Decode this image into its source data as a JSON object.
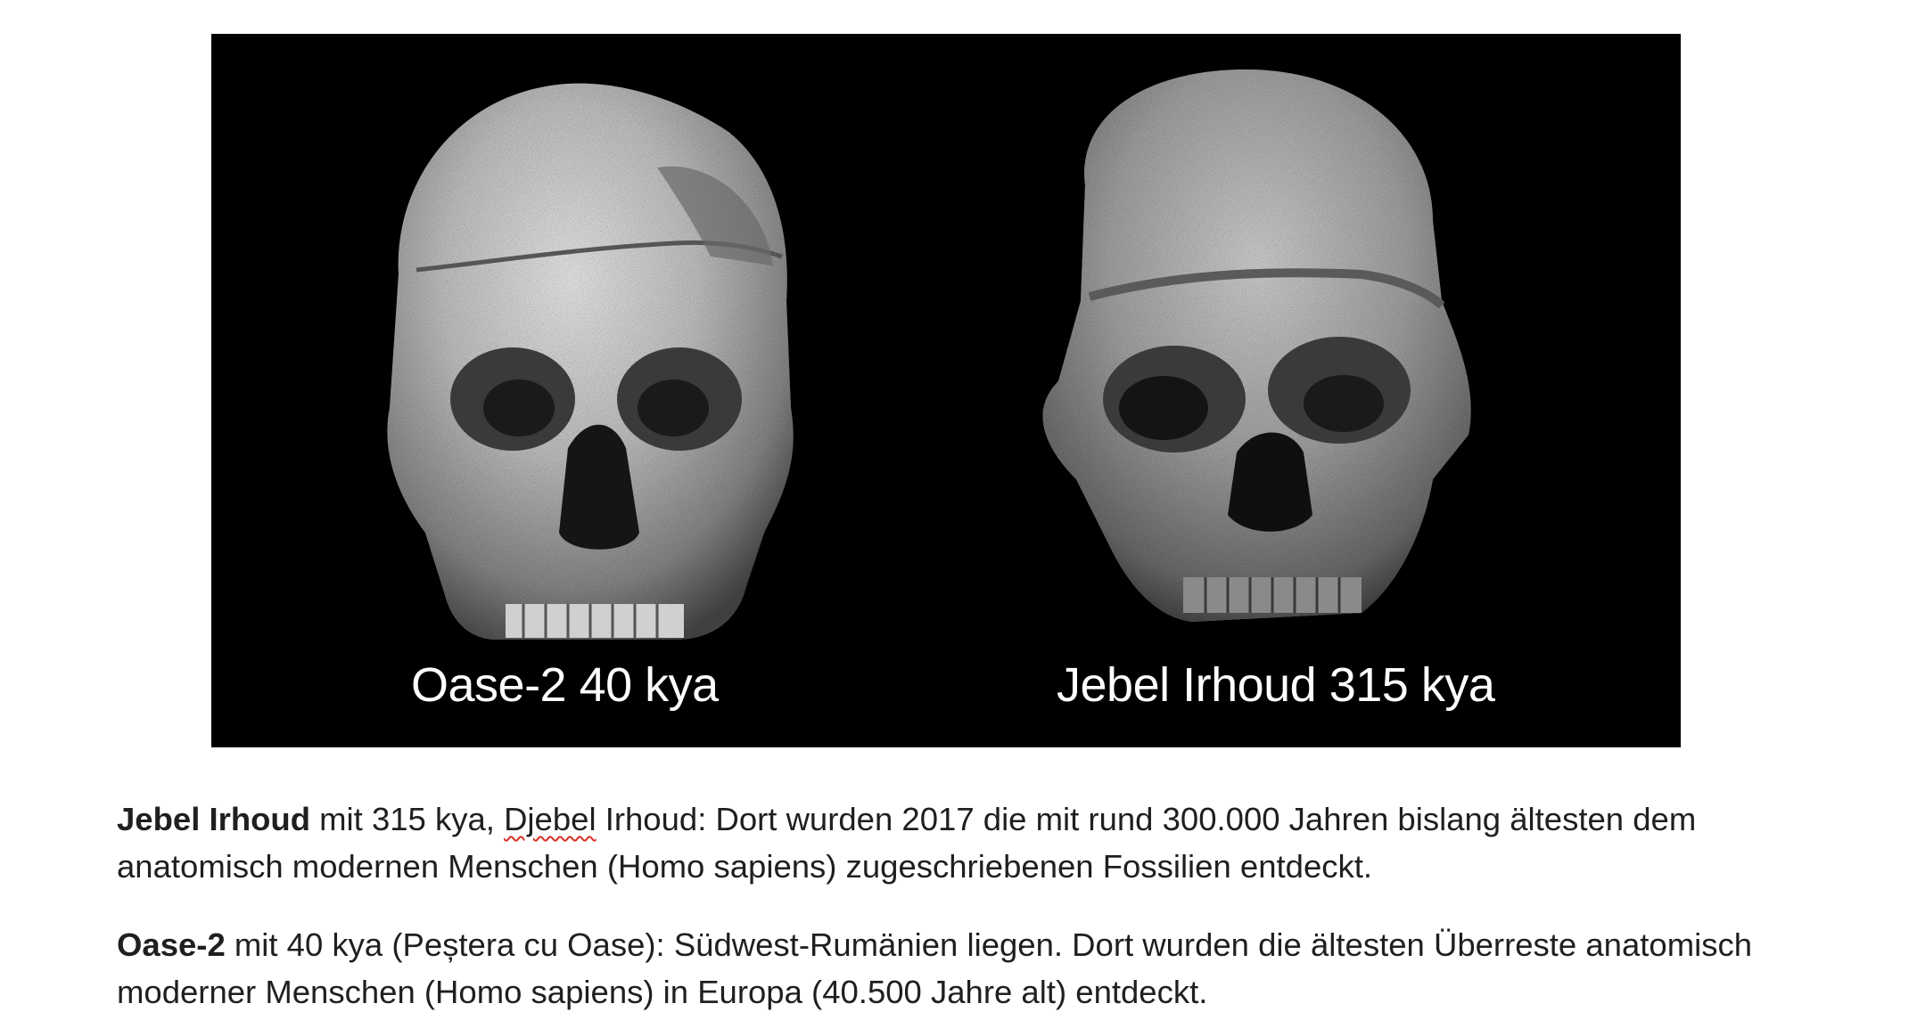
{
  "figure": {
    "left_caption": "Oase-2 40 kya",
    "right_caption": "Jebel Irhoud 315 kya",
    "background_color": "#000000"
  },
  "paragraphs": [
    {
      "bold": "Jebel Irhoud",
      "text_before_flag": " mit 315 kya, ",
      "flagged_word": "Djebel",
      "text_after_flag": " Irhoud: Dort wurden 2017 die mit rund 300.000 Jahren bislang ältesten dem anatomisch modernen Menschen (Homo sapiens) zugeschriebenen Fossilien entdeckt."
    },
    {
      "bold": "Oase-2",
      "text": " mit 40 kya (Peștera cu Oase): Südwest-Rumänien liegen. Dort wurden die ältesten Überreste anatomisch moderner Menschen (Homo sapiens) in Europa (40.500 Jahre alt) entdeckt."
    }
  ],
  "colors": {
    "text": "#1f1f1f",
    "spellcheck_underline": "#d93025"
  }
}
